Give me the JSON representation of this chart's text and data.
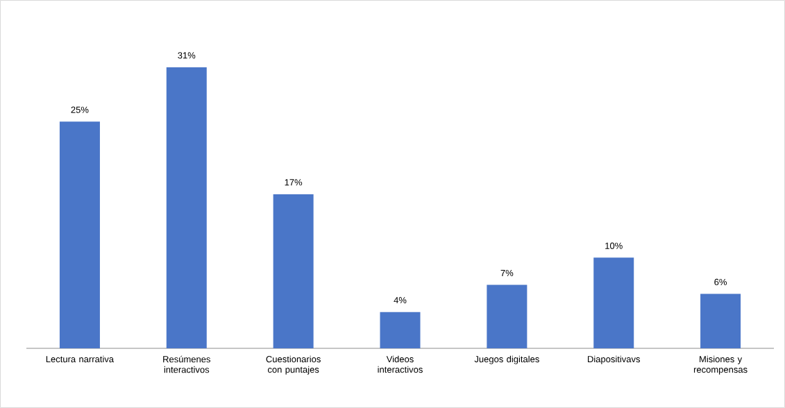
{
  "chart_data": {
    "type": "bar",
    "categories": [
      "Lectura narrativa",
      "Resúmenes interactivos",
      "Cuestionarios con puntajes",
      "Videos interactivos",
      "Juegos digitales",
      "Diapositivavs",
      "Misiones y recompensas"
    ],
    "values": [
      25,
      31,
      17,
      4,
      7,
      10,
      6
    ],
    "value_labels": [
      "25%",
      "31%",
      "17%",
      "4%",
      "7%",
      "10%",
      "6%"
    ],
    "color": "#4a76c8"
  }
}
